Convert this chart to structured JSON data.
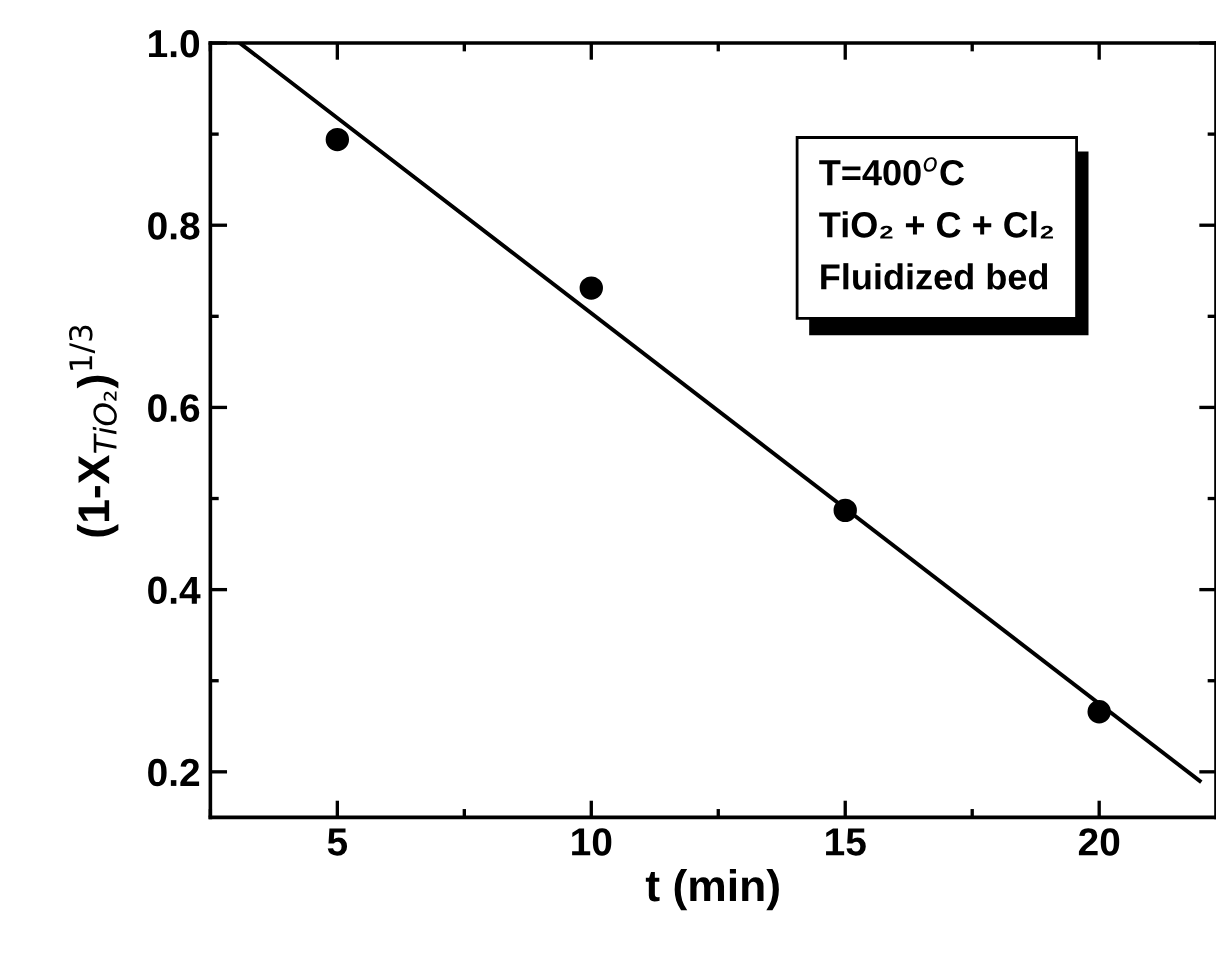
{
  "chart_data": {
    "type": "scatter",
    "xlabel": "t (min)",
    "ylabel": "(1-X$_{TiO₂}$)$^{1/3}$",
    "xlim": [
      2.5,
      22.3
    ],
    "ylim": [
      0.15,
      1.0
    ],
    "xticks": [
      5,
      10,
      15,
      20
    ],
    "yticks": [
      0.2,
      0.4,
      0.6,
      0.8,
      {
        "value": 1.0,
        "label": "1.0"
      }
    ],
    "grid": false,
    "marker": "circle",
    "series": [
      {
        "color": "#000000",
        "x": [
          5,
          10,
          15,
          20
        ],
        "values": [
          0.894,
          0.731,
          0.487,
          0.266
        ]
      },
      {
        "type": "line",
        "color": "#000000",
        "x": [
          3.08,
          21.98
        ],
        "values": [
          1.0,
          0.19
        ],
        "line_style": "solid",
        "marker": "none"
      }
    ],
    "annotations": [
      "T=400$^{o}$C",
      "TiO₂ + C + Cl₂",
      "Fluidized bed"
    ]
  }
}
